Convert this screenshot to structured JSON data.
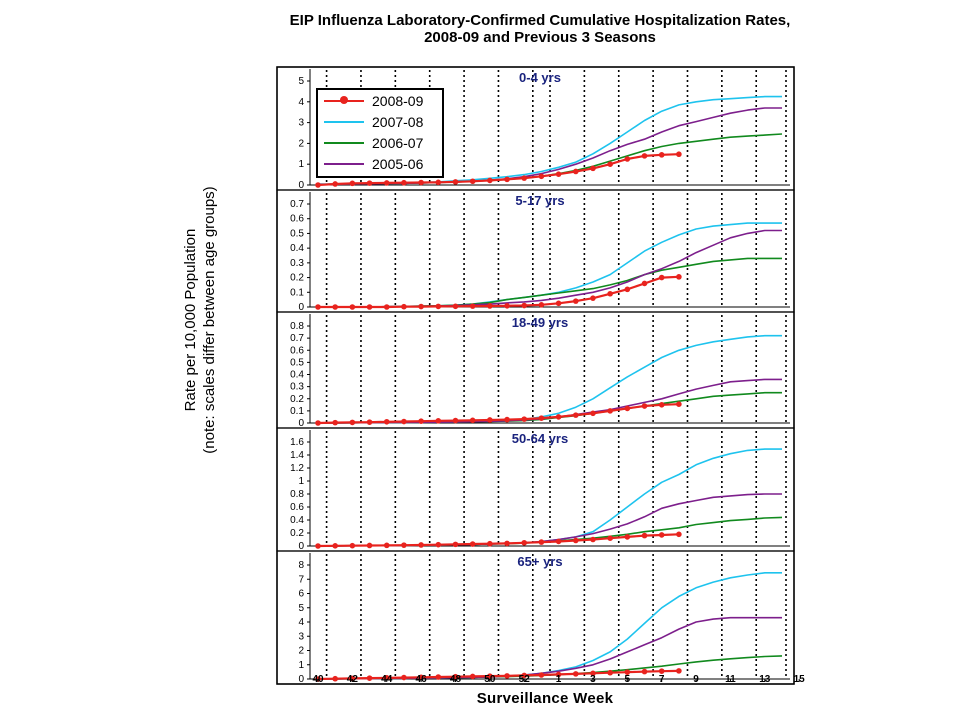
{
  "chart_data": {
    "type": "line",
    "title": "EIP Influenza Laboratory-Confirmed Cumulative Hospitalization Rates, 2008-09 and Previous 3 Seasons",
    "title_lines": [
      "EIP Influenza Laboratory-Confirmed Cumulative Hospitalization Rates,",
      "2008-09 and Previous 3 Seasons"
    ],
    "ylabel_lines": [
      "Rate per 10,000 Population",
      "(note: scales differ between age groups)"
    ],
    "xlabel": "Surveillance Week",
    "x_tick_labels": [
      "40",
      "42",
      "44",
      "46",
      "48",
      "50",
      "52",
      "1",
      "3",
      "5",
      "7",
      "9",
      "11",
      "13",
      "15"
    ],
    "weeks": [
      "40",
      "41",
      "42",
      "43",
      "44",
      "45",
      "46",
      "47",
      "48",
      "49",
      "50",
      "51",
      "52",
      "1",
      "2",
      "3",
      "4",
      "5",
      "6",
      "7",
      "8",
      "9",
      "10",
      "11",
      "12",
      "13",
      "14",
      "15"
    ],
    "vertical_gridlines_at_weeks": [
      "41",
      "43",
      "45",
      "47",
      "49",
      "51",
      "1",
      "2",
      "4",
      "6",
      "8",
      "10",
      "12",
      "14",
      "16"
    ],
    "legend": {
      "position": "top-left of first panel",
      "entries": [
        {
          "label": "2008-09",
          "color": "#e8231e",
          "marker": "dot"
        },
        {
          "label": "2007-08",
          "color": "#1ec3ee",
          "marker": "none"
        },
        {
          "label": "2006-07",
          "color": "#118a1e",
          "marker": "none"
        },
        {
          "label": "2005-06",
          "color": "#7d1f8c",
          "marker": "none"
        }
      ]
    },
    "panels": [
      {
        "label": "0-4 yrs",
        "ylim": [
          0,
          5
        ],
        "yticks": [
          "0",
          "1",
          "2",
          "3",
          "4",
          "5"
        ],
        "series": [
          {
            "name": "2008-09",
            "color": "#e8231e",
            "values": [
              0.0,
              0.05,
              0.08,
              0.09,
              0.1,
              0.11,
              0.12,
              0.13,
              0.15,
              0.18,
              0.22,
              0.27,
              0.33,
              0.42,
              0.52,
              0.65,
              0.8,
              1.0,
              1.25,
              1.4,
              1.45,
              1.48
            ]
          },
          {
            "name": "2007-08",
            "color": "#1ec3ee",
            "values": [
              0.05,
              0.05,
              0.06,
              0.07,
              0.08,
              0.1,
              0.12,
              0.15,
              0.2,
              0.25,
              0.32,
              0.4,
              0.5,
              0.65,
              0.85,
              1.1,
              1.5,
              2.0,
              2.55,
              3.1,
              3.55,
              3.85,
              4.0,
              4.1,
              4.15,
              4.2,
              4.25,
              4.25
            ]
          },
          {
            "name": "2006-07",
            "color": "#118a1e",
            "values": [
              0.03,
              0.04,
              0.05,
              0.06,
              0.07,
              0.08,
              0.1,
              0.12,
              0.15,
              0.18,
              0.22,
              0.27,
              0.33,
              0.42,
              0.55,
              0.7,
              0.9,
              1.15,
              1.4,
              1.65,
              1.85,
              2.0,
              2.1,
              2.2,
              2.3,
              2.35,
              2.4,
              2.45
            ]
          },
          {
            "name": "2005-06",
            "color": "#7d1f8c",
            "values": [
              0.03,
              0.04,
              0.05,
              0.06,
              0.07,
              0.08,
              0.1,
              0.12,
              0.15,
              0.18,
              0.24,
              0.3,
              0.4,
              0.55,
              0.75,
              1.0,
              1.3,
              1.65,
              1.95,
              2.2,
              2.55,
              2.85,
              3.05,
              3.25,
              3.45,
              3.6,
              3.7,
              3.7
            ]
          }
        ]
      },
      {
        "label": "5-17 yrs",
        "ylim": [
          0,
          0.7
        ],
        "yticks": [
          "0",
          "0.1",
          "0.2",
          "0.3",
          "0.4",
          "0.5",
          "0.6",
          "0.7"
        ],
        "series": [
          {
            "name": "2008-09",
            "color": "#e8231e",
            "values": [
              0.0,
              0.0,
              0.0,
              0.0,
              0.0,
              0.002,
              0.003,
              0.004,
              0.005,
              0.006,
              0.007,
              0.008,
              0.01,
              0.015,
              0.025,
              0.04,
              0.06,
              0.09,
              0.12,
              0.16,
              0.2,
              0.205
            ]
          },
          {
            "name": "2007-08",
            "color": "#1ec3ee",
            "values": [
              0.0,
              0.0,
              0.0,
              0.0,
              0.002,
              0.004,
              0.006,
              0.008,
              0.012,
              0.02,
              0.035,
              0.05,
              0.065,
              0.08,
              0.1,
              0.13,
              0.17,
              0.22,
              0.3,
              0.38,
              0.44,
              0.49,
              0.53,
              0.55,
              0.56,
              0.57,
              0.57,
              0.57
            ]
          },
          {
            "name": "2006-07",
            "color": "#118a1e",
            "values": [
              0.0,
              0.0,
              0.0,
              0.0,
              0.002,
              0.004,
              0.006,
              0.008,
              0.012,
              0.02,
              0.03,
              0.05,
              0.065,
              0.08,
              0.095,
              0.11,
              0.125,
              0.15,
              0.18,
              0.22,
              0.25,
              0.27,
              0.29,
              0.31,
              0.32,
              0.33,
              0.33,
              0.33
            ]
          },
          {
            "name": "2005-06",
            "color": "#7d1f8c",
            "values": [
              0.0,
              0.0,
              0.0,
              0.0,
              0.002,
              0.003,
              0.005,
              0.007,
              0.01,
              0.015,
              0.02,
              0.028,
              0.035,
              0.045,
              0.06,
              0.08,
              0.1,
              0.13,
              0.17,
              0.22,
              0.26,
              0.31,
              0.37,
              0.42,
              0.47,
              0.5,
              0.52,
              0.52
            ]
          }
        ]
      },
      {
        "label": "18-49 yrs",
        "ylim": [
          0,
          0.8
        ],
        "yticks": [
          "0",
          "0.1",
          "0.2",
          "0.3",
          "0.4",
          "0.5",
          "0.6",
          "0.7",
          "0.8"
        ],
        "series": [
          {
            "name": "2008-09",
            "color": "#e8231e",
            "values": [
              0.0,
              0.003,
              0.005,
              0.007,
              0.01,
              0.012,
              0.015,
              0.018,
              0.02,
              0.022,
              0.025,
              0.028,
              0.032,
              0.04,
              0.05,
              0.065,
              0.08,
              0.1,
              0.12,
              0.14,
              0.15,
              0.155
            ]
          },
          {
            "name": "2007-08",
            "color": "#1ec3ee",
            "values": [
              0.0,
              0.001,
              0.002,
              0.003,
              0.004,
              0.005,
              0.006,
              0.008,
              0.01,
              0.012,
              0.015,
              0.02,
              0.03,
              0.05,
              0.08,
              0.13,
              0.2,
              0.29,
              0.38,
              0.46,
              0.54,
              0.6,
              0.64,
              0.67,
              0.69,
              0.71,
              0.72,
              0.72
            ]
          },
          {
            "name": "2006-07",
            "color": "#118a1e",
            "values": [
              0.0,
              0.001,
              0.002,
              0.003,
              0.004,
              0.005,
              0.006,
              0.007,
              0.008,
              0.01,
              0.012,
              0.016,
              0.02,
              0.03,
              0.045,
              0.06,
              0.08,
              0.1,
              0.12,
              0.14,
              0.16,
              0.18,
              0.2,
              0.22,
              0.23,
              0.24,
              0.25,
              0.25
            ]
          },
          {
            "name": "2005-06",
            "color": "#7d1f8c",
            "values": [
              0.0,
              0.001,
              0.002,
              0.003,
              0.004,
              0.005,
              0.006,
              0.007,
              0.009,
              0.011,
              0.014,
              0.018,
              0.025,
              0.035,
              0.05,
              0.07,
              0.09,
              0.11,
              0.14,
              0.17,
              0.2,
              0.24,
              0.28,
              0.31,
              0.34,
              0.35,
              0.36,
              0.36
            ]
          }
        ]
      },
      {
        "label": "50-64 yrs",
        "ylim": [
          0,
          1.6
        ],
        "yticks": [
          "0",
          "0.2",
          "0.4",
          "0.6",
          "0.8",
          "1",
          "1.2",
          "1.4",
          "1.6"
        ],
        "series": [
          {
            "name": "2008-09",
            "color": "#e8231e",
            "values": [
              0.0,
              0.003,
              0.005,
              0.008,
              0.01,
              0.013,
              0.016,
              0.02,
              0.025,
              0.03,
              0.035,
              0.04,
              0.05,
              0.06,
              0.07,
              0.085,
              0.1,
              0.12,
              0.14,
              0.16,
              0.17,
              0.18
            ]
          },
          {
            "name": "2007-08",
            "color": "#1ec3ee",
            "values": [
              0.0,
              0.002,
              0.004,
              0.006,
              0.008,
              0.01,
              0.012,
              0.015,
              0.02,
              0.025,
              0.03,
              0.04,
              0.05,
              0.07,
              0.1,
              0.14,
              0.22,
              0.4,
              0.6,
              0.8,
              0.98,
              1.1,
              1.25,
              1.35,
              1.42,
              1.47,
              1.49,
              1.49
            ]
          },
          {
            "name": "2006-07",
            "color": "#118a1e",
            "values": [
              0.0,
              0.002,
              0.004,
              0.006,
              0.008,
              0.01,
              0.012,
              0.015,
              0.02,
              0.025,
              0.03,
              0.035,
              0.045,
              0.06,
              0.08,
              0.1,
              0.12,
              0.15,
              0.18,
              0.22,
              0.25,
              0.28,
              0.33,
              0.36,
              0.39,
              0.41,
              0.43,
              0.44
            ]
          },
          {
            "name": "2005-06",
            "color": "#7d1f8c",
            "values": [
              0.0,
              0.002,
              0.004,
              0.006,
              0.008,
              0.01,
              0.012,
              0.015,
              0.02,
              0.025,
              0.03,
              0.04,
              0.05,
              0.07,
              0.1,
              0.14,
              0.19,
              0.26,
              0.34,
              0.45,
              0.58,
              0.65,
              0.7,
              0.75,
              0.77,
              0.79,
              0.8,
              0.8
            ]
          }
        ]
      },
      {
        "label": "65+ yrs",
        "ylim": [
          0,
          8
        ],
        "yticks": [
          "0",
          "1",
          "2",
          "3",
          "4",
          "5",
          "6",
          "7",
          "8"
        ],
        "series": [
          {
            "name": "2008-09",
            "color": "#e8231e",
            "values": [
              0.0,
              0.02,
              0.04,
              0.06,
              0.08,
              0.1,
              0.12,
              0.14,
              0.16,
              0.18,
              0.2,
              0.22,
              0.25,
              0.28,
              0.32,
              0.36,
              0.4,
              0.44,
              0.48,
              0.52,
              0.55,
              0.57
            ]
          },
          {
            "name": "2007-08",
            "color": "#1ec3ee",
            "values": [
              0.0,
              0.01,
              0.02,
              0.03,
              0.04,
              0.05,
              0.06,
              0.08,
              0.1,
              0.12,
              0.15,
              0.2,
              0.28,
              0.4,
              0.6,
              0.85,
              1.3,
              1.9,
              2.8,
              3.9,
              5.0,
              5.8,
              6.4,
              6.8,
              7.1,
              7.3,
              7.45,
              7.45
            ]
          },
          {
            "name": "2006-07",
            "color": "#118a1e",
            "values": [
              0.0,
              0.01,
              0.02,
              0.03,
              0.04,
              0.05,
              0.06,
              0.08,
              0.1,
              0.12,
              0.14,
              0.17,
              0.2,
              0.25,
              0.3,
              0.38,
              0.45,
              0.55,
              0.65,
              0.78,
              0.9,
              1.05,
              1.2,
              1.32,
              1.42,
              1.5,
              1.58,
              1.62
            ]
          },
          {
            "name": "2005-06",
            "color": "#7d1f8c",
            "values": [
              0.0,
              0.01,
              0.02,
              0.03,
              0.04,
              0.05,
              0.06,
              0.08,
              0.1,
              0.12,
              0.15,
              0.2,
              0.28,
              0.4,
              0.55,
              0.75,
              1.0,
              1.4,
              1.9,
              2.4,
              2.9,
              3.5,
              4.0,
              4.2,
              4.3,
              4.3,
              4.3,
              4.3
            ]
          }
        ]
      }
    ]
  }
}
